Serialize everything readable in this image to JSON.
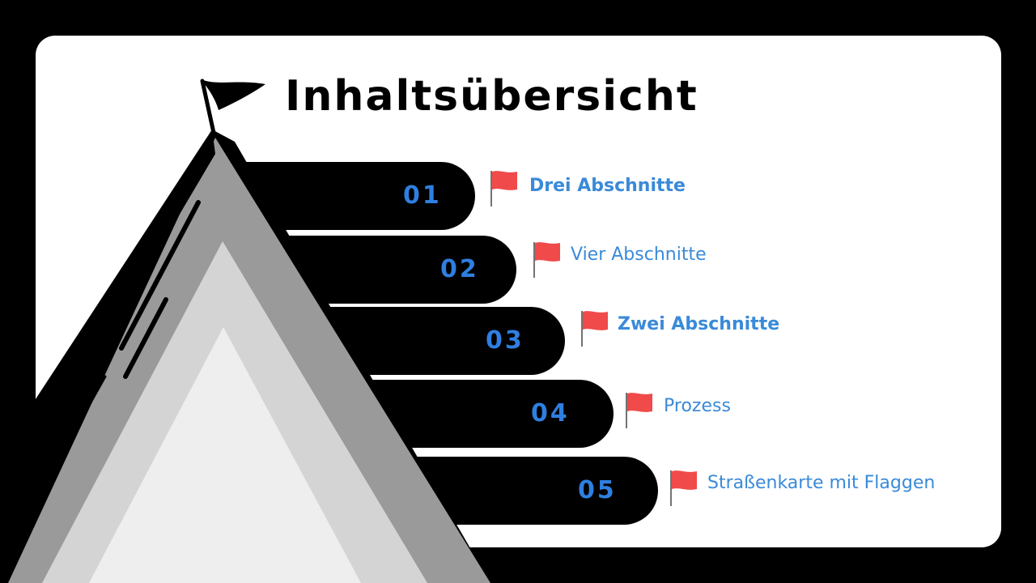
{
  "slide": {
    "title": "Inhaltsübersicht"
  },
  "colors": {
    "number": "#2f7fe0",
    "label": "#3a8ad8",
    "flag": "#f04a4a",
    "pill": "#000000",
    "card": "#ffffff"
  },
  "items": [
    {
      "number": "01",
      "label": "Drei Abschnitte"
    },
    {
      "number": "02",
      "label": "Vier Abschnitte"
    },
    {
      "number": "03",
      "label": "Zwei Abschnitte"
    },
    {
      "number": "04",
      "label": "Prozess"
    },
    {
      "number": "05",
      "label": "Straßenkarte mit Flaggen"
    }
  ],
  "icons": {
    "summit_flag": "summit-flag-icon",
    "item_flag": "flag-icon"
  }
}
